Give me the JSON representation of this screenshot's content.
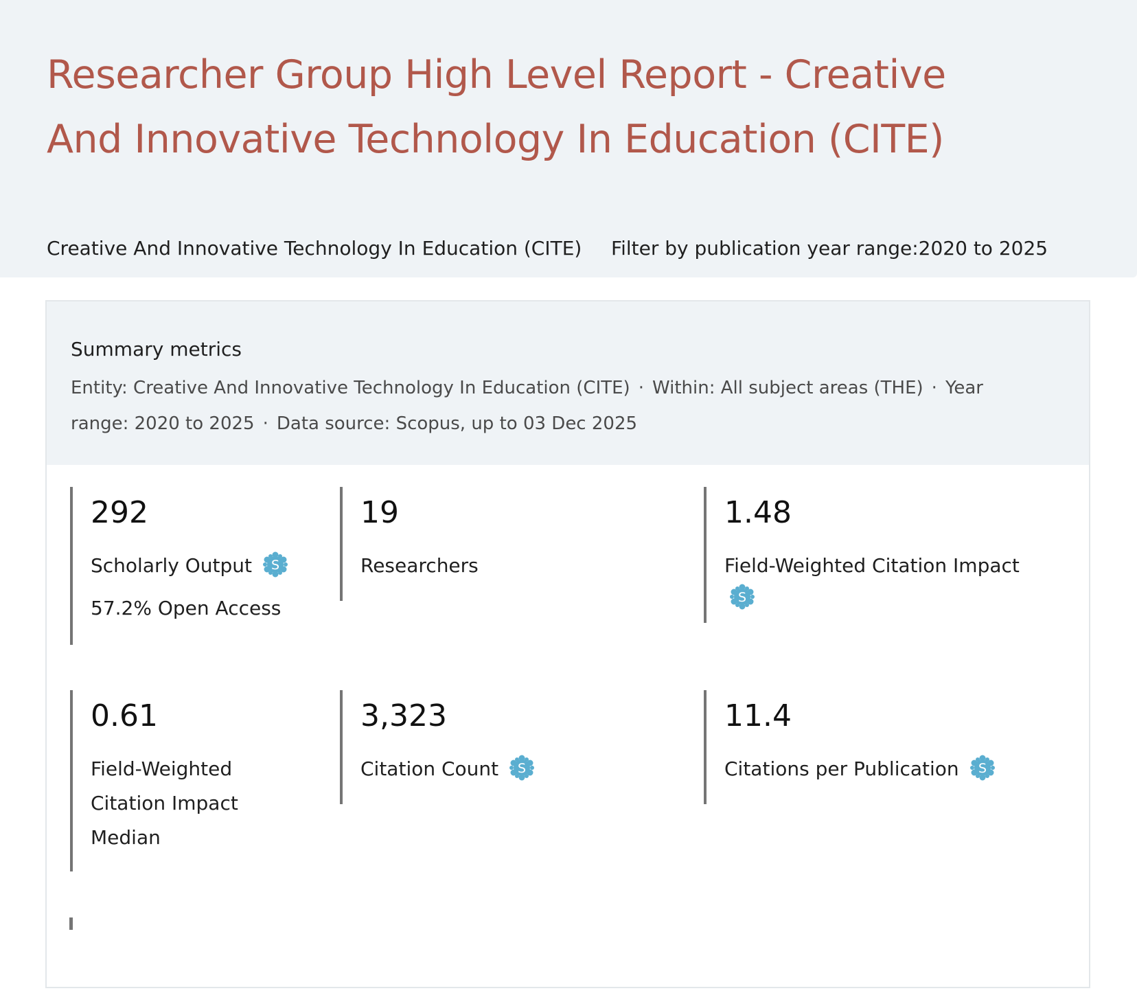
{
  "header": {
    "title": "Researcher Group High Level Report - Creative And Innovative Technology In Education (CITE)",
    "entity": "Creative And Innovative Technology In Education (CITE)",
    "filter_label": "Filter by publication year range:",
    "filter_value": "2020 to 2025"
  },
  "summary": {
    "title": "Summary metrics",
    "entity": "Entity: Creative And Innovative Technology In Education (CITE)",
    "within": "Within: All subject areas (THE)",
    "year_range": "Year range: 2020 to 2025",
    "data_source": "Data source: Scopus, up to 03 Dec 2025",
    "separator": "·"
  },
  "metrics": [
    {
      "value": "292",
      "label": "Scholarly Output",
      "sub": "57.2% Open Access",
      "icon": "scival-snowflake-icon"
    },
    {
      "value": "19",
      "label": "Researchers"
    },
    {
      "value": "1.48",
      "label": "Field-Weighted Citation Impact",
      "icon": "scival-snowflake-icon"
    },
    {
      "value": "0.61",
      "label": "Field-Weighted Citation Impact Median"
    },
    {
      "value": "3,323",
      "label": "Citation Count",
      "icon": "scival-snowflake-icon"
    },
    {
      "value": "11.4",
      "label": "Citations per Publication",
      "icon": "scival-snowflake-icon"
    }
  ],
  "colors": {
    "title": "#b1584b",
    "panel_bg": "#eff3f6",
    "metric_border": "#757575",
    "icon": "#5aaed0"
  }
}
